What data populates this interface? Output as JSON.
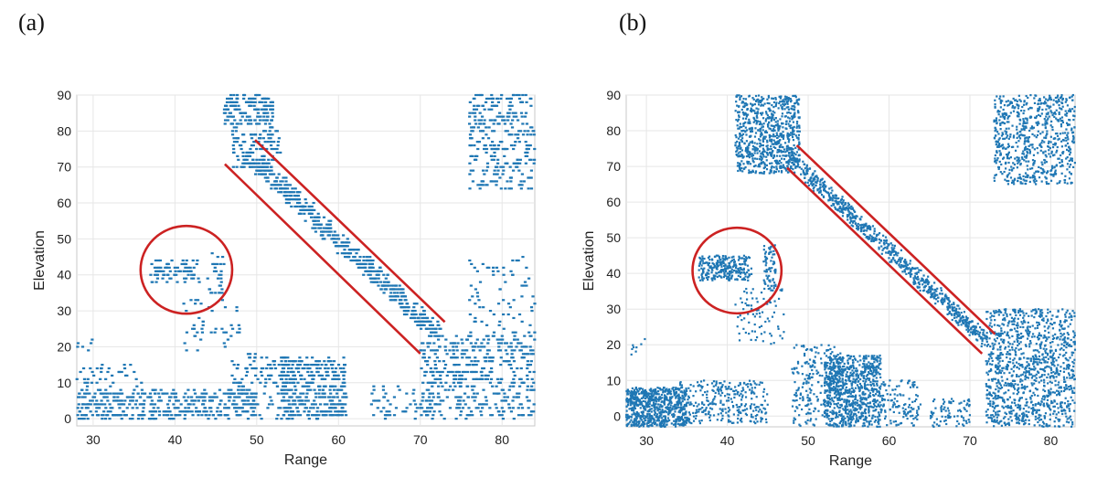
{
  "panels": [
    {
      "label": "(a)"
    },
    {
      "label": "(b)"
    }
  ],
  "chart_data": [
    {
      "type": "scatter",
      "panel": "(a)",
      "xlabel": "Range",
      "ylabel": "Elevation",
      "xlim": [
        28,
        84
      ],
      "ylim": [
        -2,
        90
      ],
      "xticks": [
        30,
        40,
        50,
        60,
        70,
        80
      ],
      "yticks": [
        0,
        10,
        20,
        30,
        40,
        50,
        60,
        70,
        80,
        90
      ],
      "grid": true,
      "marker_color": "#1f77b4",
      "marker_style": "quantized-dash",
      "annotation_color": "#cc2222",
      "clusters": [
        {
          "x": [
            28,
            50
          ],
          "y": [
            0,
            8
          ],
          "n": 420
        },
        {
          "x": [
            28,
            36
          ],
          "y": [
            8,
            15
          ],
          "n": 40
        },
        {
          "x": [
            28,
            30
          ],
          "y": [
            19,
            22
          ],
          "n": 6
        },
        {
          "x": [
            46,
            52
          ],
          "y": [
            82,
            90
          ],
          "n": 160
        },
        {
          "x": [
            47,
            53
          ],
          "y": [
            68,
            82
          ],
          "n": 130
        },
        {
          "x": [
            37,
            43
          ],
          "y": [
            38,
            44
          ],
          "n": 80
        },
        {
          "x": [
            44,
            46
          ],
          "y": [
            34,
            46
          ],
          "n": 25
        },
        {
          "x": [
            41,
            48
          ],
          "y": [
            18,
            35
          ],
          "n": 50
        },
        {
          "x": [
            47,
            54
          ],
          "y": [
            0,
            18
          ],
          "n": 120
        },
        {
          "x": [
            53,
            61
          ],
          "y": [
            0,
            17
          ],
          "n": 380
        },
        {
          "x": [
            70,
            84
          ],
          "y": [
            0,
            24
          ],
          "n": 480
        },
        {
          "x": [
            76,
            84
          ],
          "y": [
            24,
            45
          ],
          "n": 70
        },
        {
          "x": [
            76,
            84
          ],
          "y": [
            64,
            90
          ],
          "n": 300
        },
        {
          "x": [
            64,
            71
          ],
          "y": [
            0,
            9
          ],
          "n": 50
        }
      ],
      "diagonal_band": {
        "x": [
          49,
          72
        ],
        "y": [
          73,
          24
        ],
        "width": 5,
        "n": 550
      },
      "annotations": [
        {
          "type": "circle",
          "cx": 41.4,
          "cy": 41.4,
          "r_range": 5.6,
          "r_elev": 12.2
        },
        {
          "type": "line",
          "x": [
            49.8,
            73.0
          ],
          "y": [
            77.5,
            26.9
          ]
        },
        {
          "type": "line",
          "x": [
            46.1,
            70.0
          ],
          "y": [
            70.8,
            18.1
          ]
        }
      ]
    },
    {
      "type": "scatter",
      "panel": "(b)",
      "xlabel": "Range",
      "ylabel": "Elevation",
      "xlim": [
        27.5,
        83
      ],
      "ylim": [
        -3,
        90
      ],
      "xticks": [
        30,
        40,
        50,
        60,
        70,
        80
      ],
      "yticks": [
        0,
        10,
        20,
        30,
        40,
        50,
        60,
        70,
        80,
        90
      ],
      "grid": true,
      "marker_color": "#1f77b4",
      "marker_style": "dots",
      "annotation_color": "#cc2222",
      "clusters": [
        {
          "x": [
            27.5,
            35
          ],
          "y": [
            -3,
            8
          ],
          "n": 700
        },
        {
          "x": [
            34,
            45
          ],
          "y": [
            -2,
            10
          ],
          "n": 300
        },
        {
          "x": [
            28,
            30
          ],
          "y": [
            17,
            22
          ],
          "n": 8
        },
        {
          "x": [
            41,
            49
          ],
          "y": [
            68,
            90
          ],
          "n": 750
        },
        {
          "x": [
            36.5,
            43
          ],
          "y": [
            38,
            45
          ],
          "n": 260
        },
        {
          "x": [
            44.5,
            46
          ],
          "y": [
            35,
            48
          ],
          "n": 70
        },
        {
          "x": [
            41,
            47
          ],
          "y": [
            20,
            36
          ],
          "n": 80
        },
        {
          "x": [
            48,
            54
          ],
          "y": [
            -3,
            20
          ],
          "n": 220
        },
        {
          "x": [
            52,
            59
          ],
          "y": [
            -3,
            17
          ],
          "n": 800
        },
        {
          "x": [
            59,
            64
          ],
          "y": [
            -3,
            10
          ],
          "n": 120
        },
        {
          "x": [
            72,
            83
          ],
          "y": [
            -3,
            30
          ],
          "n": 1100
        },
        {
          "x": [
            73,
            83
          ],
          "y": [
            65,
            90
          ],
          "n": 700
        },
        {
          "x": [
            65,
            70
          ],
          "y": [
            -3,
            5
          ],
          "n": 80
        }
      ],
      "diagonal_band": {
        "x": [
          47.5,
          72
        ],
        "y": [
          73,
          21
        ],
        "width": 4,
        "n": 750
      },
      "annotations": [
        {
          "type": "circle",
          "cx": 41.2,
          "cy": 40.8,
          "r_range": 5.5,
          "r_elev": 12.0
        },
        {
          "type": "line",
          "x": [
            48.6,
            73.1
          ],
          "y": [
            75.9,
            23.0
          ]
        },
        {
          "type": "line",
          "x": [
            47.4,
            71.5
          ],
          "y": [
            69.6,
            17.5
          ]
        }
      ]
    }
  ]
}
